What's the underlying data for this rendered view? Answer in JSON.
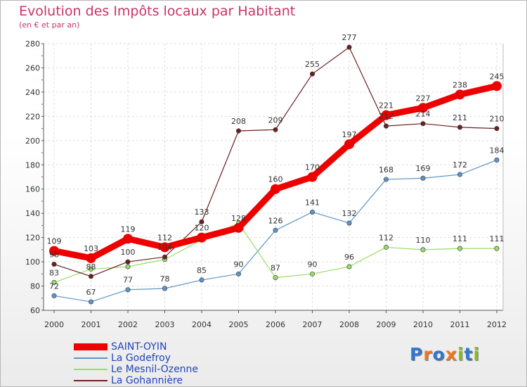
{
  "title": "Evolution des Impôts locaux par Habitant",
  "subtitle": "(en € et par an)",
  "logo": {
    "text": "Proxiti",
    "letter_colors": [
      "#3377cc",
      "#ee7722",
      "#3377cc",
      "#ee7722",
      "#88bb22",
      "#3377cc",
      "#88bb22"
    ]
  },
  "chart_data": {
    "type": "line",
    "title": "Evolution des Impôts locaux par Habitant",
    "subtitle": "(en € et par an)",
    "xlabel": "",
    "ylabel": "",
    "categories": [
      "2000",
      "2001",
      "2002",
      "2003",
      "2004",
      "2005",
      "2006",
      "2007",
      "2008",
      "2009",
      "2010",
      "2011",
      "2012"
    ],
    "ylim": [
      60,
      280
    ],
    "yticks": [
      60,
      80,
      100,
      120,
      140,
      160,
      180,
      200,
      220,
      240,
      260,
      280
    ],
    "grid": true,
    "legend_position": "bottom-left",
    "series": [
      {
        "name": "La Godefroy",
        "color": "#5f95c6",
        "values": [
          72,
          67,
          77,
          78,
          85,
          90,
          126,
          141,
          132,
          168,
          169,
          172,
          184
        ],
        "labels": [
          "72",
          "67",
          "77",
          "78",
          "85",
          "90",
          "126",
          "141",
          "132",
          "168",
          "169",
          "172",
          "184"
        ]
      },
      {
        "name": "Le Mesnil-Ozenne",
        "color": "#99dd66",
        "values": [
          83,
          94,
          96,
          102,
          118,
          132,
          87,
          90,
          96,
          112,
          110,
          111,
          111
        ],
        "labels": [
          "83",
          "",
          "",
          "",
          "",
          "",
          "87",
          "90",
          "96",
          "112",
          "110",
          "111",
          "111"
        ]
      },
      {
        "name": "La Gohannière",
        "color": "#6b2020",
        "values": [
          98,
          88,
          100,
          104,
          133,
          208,
          209,
          255,
          277,
          212,
          214,
          211,
          210
        ],
        "labels": [
          "98",
          "88",
          "100",
          "104",
          "133",
          "208",
          "209",
          "255",
          "277",
          "212",
          "214",
          "211",
          "210"
        ]
      },
      {
        "name": "SAINT-OYIN",
        "color": "#ee0000",
        "values": [
          109,
          103,
          119,
          112,
          120,
          128,
          160,
          170,
          197,
          221,
          227,
          238,
          245
        ],
        "labels": [
          "109",
          "103",
          "119",
          "112",
          "120",
          "128",
          "160",
          "170",
          "197",
          "221",
          "227",
          "238",
          "245"
        ]
      }
    ],
    "legend": [
      {
        "name": "SAINT-OYIN",
        "color": "#ee0000"
      },
      {
        "name": "La Godefroy",
        "color": "#5f95c6"
      },
      {
        "name": "Le Mesnil-Ozenne",
        "color": "#99dd66"
      },
      {
        "name": "La Gohannière",
        "color": "#6b2020"
      }
    ]
  }
}
